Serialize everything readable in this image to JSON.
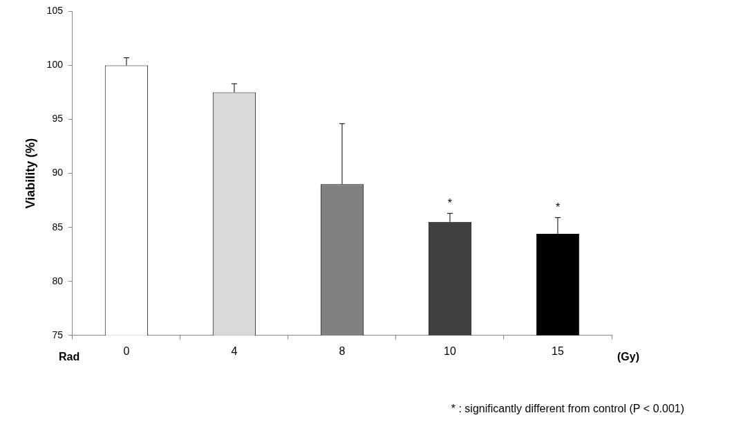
{
  "chart_data": {
    "type": "bar",
    "y_label": "Viability (%)",
    "x_prefix": "Rad",
    "x_label": "(Gy)",
    "categories": [
      "0",
      "4",
      "8",
      "10",
      "15"
    ],
    "values": [
      100,
      97.5,
      89,
      85.5,
      84.4
    ],
    "errors": [
      0.7,
      0.8,
      5.6,
      0.8,
      1.5
    ],
    "colors": [
      "#ffffff",
      "#d9d9d9",
      "#808080",
      "#404040",
      "#000000"
    ],
    "ylim": [
      75,
      105
    ],
    "yticks": [
      75,
      80,
      85,
      90,
      95,
      100,
      105
    ],
    "grid": false,
    "annotations": [
      {
        "category": "10",
        "text": "*"
      },
      {
        "category": "15",
        "text": "*"
      }
    ],
    "note": "* : significantly different from control (P < 0.001)"
  }
}
